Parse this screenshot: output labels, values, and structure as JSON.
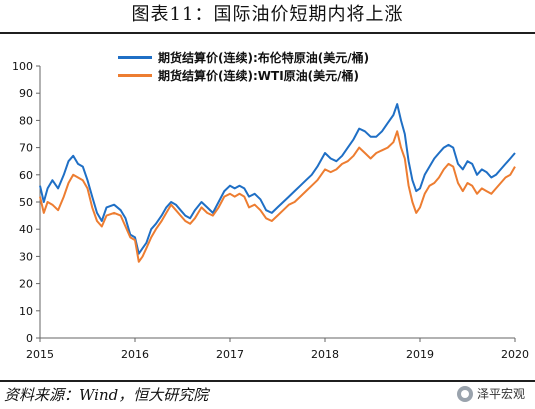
{
  "page_title": "图表11：国际油价短期内将上涨",
  "source_note": "资料来源：Wind，恒大研究院",
  "watermark": "泽平宏观",
  "chart_data": {
    "type": "line",
    "title": "",
    "xlabel": "",
    "ylabel": "",
    "ylim": [
      0,
      100
    ],
    "yticks": [
      "0",
      "10",
      "20",
      "30",
      "40",
      "50",
      "60",
      "70",
      "80",
      "90",
      "100"
    ],
    "xlim": [
      2015,
      2020
    ],
    "xticks": [
      "2015",
      "2016",
      "2017",
      "2018",
      "2019",
      "2020"
    ],
    "grid": false,
    "legend_position": "top",
    "series": [
      {
        "name": "期货结算价(连续):布伦特原油(美元/桶)",
        "color": "#1f6fc5",
        "x": [
          2015.0,
          2015.04,
          2015.08,
          2015.13,
          2015.19,
          2015.25,
          2015.3,
          2015.35,
          2015.4,
          2015.45,
          2015.5,
          2015.55,
          2015.6,
          2015.65,
          2015.7,
          2015.78,
          2015.85,
          2015.9,
          2015.95,
          2016.0,
          2016.04,
          2016.08,
          2016.12,
          2016.17,
          2016.22,
          2016.28,
          2016.33,
          2016.38,
          2016.43,
          2016.48,
          2016.53,
          2016.58,
          2016.63,
          2016.7,
          2016.76,
          2016.82,
          2016.88,
          2016.94,
          2017.0,
          2017.05,
          2017.1,
          2017.15,
          2017.2,
          2017.26,
          2017.32,
          2017.38,
          2017.44,
          2017.5,
          2017.56,
          2017.62,
          2017.68,
          2017.74,
          2017.8,
          2017.86,
          2017.92,
          2018.0,
          2018.06,
          2018.12,
          2018.18,
          2018.24,
          2018.3,
          2018.36,
          2018.42,
          2018.48,
          2018.54,
          2018.6,
          2018.66,
          2018.72,
          2018.76,
          2018.8,
          2018.84,
          2018.88,
          2018.92,
          2018.96,
          2019.0,
          2019.05,
          2019.1,
          2019.15,
          2019.2,
          2019.25,
          2019.3,
          2019.35,
          2019.4,
          2019.45,
          2019.5,
          2019.55,
          2019.6,
          2019.65,
          2019.7,
          2019.75,
          2019.8,
          2019.85,
          2019.9,
          2019.95,
          2020.0
        ],
        "values": [
          56,
          50,
          55,
          58,
          55,
          60,
          65,
          67,
          64,
          63,
          58,
          52,
          46,
          43,
          48,
          49,
          47,
          44,
          38,
          37,
          31,
          33,
          35,
          40,
          42,
          45,
          48,
          50,
          49,
          47,
          45,
          44,
          47,
          50,
          48,
          46,
          50,
          54,
          56,
          55,
          56,
          55,
          52,
          53,
          51,
          47,
          46,
          48,
          50,
          52,
          54,
          56,
          58,
          60,
          63,
          68,
          66,
          65,
          67,
          70,
          73,
          77,
          76,
          74,
          74,
          76,
          79,
          82,
          86,
          80,
          75,
          65,
          58,
          54,
          55,
          60,
          63,
          66,
          68,
          70,
          71,
          70,
          64,
          62,
          65,
          64,
          60,
          62,
          61,
          59,
          60,
          62,
          64,
          66,
          68
        ]
      },
      {
        "name": "期货结算价(连续):WTI原油(美元/桶)",
        "color": "#ed7d31",
        "x": [
          2015.0,
          2015.04,
          2015.08,
          2015.13,
          2015.19,
          2015.25,
          2015.3,
          2015.35,
          2015.4,
          2015.45,
          2015.5,
          2015.55,
          2015.6,
          2015.65,
          2015.7,
          2015.78,
          2015.85,
          2015.9,
          2015.95,
          2016.0,
          2016.04,
          2016.08,
          2016.12,
          2016.17,
          2016.22,
          2016.28,
          2016.33,
          2016.38,
          2016.43,
          2016.48,
          2016.53,
          2016.58,
          2016.63,
          2016.7,
          2016.76,
          2016.82,
          2016.88,
          2016.94,
          2017.0,
          2017.05,
          2017.1,
          2017.15,
          2017.2,
          2017.26,
          2017.32,
          2017.38,
          2017.44,
          2017.5,
          2017.56,
          2017.62,
          2017.68,
          2017.74,
          2017.8,
          2017.86,
          2017.92,
          2018.0,
          2018.06,
          2018.12,
          2018.18,
          2018.24,
          2018.3,
          2018.36,
          2018.42,
          2018.48,
          2018.54,
          2018.6,
          2018.66,
          2018.72,
          2018.76,
          2018.8,
          2018.84,
          2018.88,
          2018.92,
          2018.96,
          2019.0,
          2019.05,
          2019.1,
          2019.15,
          2019.2,
          2019.25,
          2019.3,
          2019.35,
          2019.4,
          2019.45,
          2019.5,
          2019.55,
          2019.6,
          2019.65,
          2019.7,
          2019.75,
          2019.8,
          2019.85,
          2019.9,
          2019.95,
          2020.0
        ],
        "values": [
          52,
          46,
          50,
          49,
          47,
          52,
          57,
          60,
          59,
          58,
          55,
          48,
          43,
          41,
          45,
          46,
          45,
          41,
          37,
          36,
          28,
          30,
          33,
          37,
          40,
          43,
          46,
          49,
          47,
          45,
          43,
          42,
          44,
          48,
          46,
          45,
          48,
          52,
          53,
          52,
          53,
          52,
          48,
          49,
          47,
          44,
          43,
          45,
          47,
          49,
          50,
          52,
          54,
          56,
          58,
          62,
          61,
          62,
          64,
          65,
          67,
          70,
          68,
          66,
          68,
          69,
          70,
          72,
          76,
          70,
          66,
          56,
          50,
          46,
          48,
          53,
          56,
          57,
          59,
          62,
          64,
          63,
          57,
          54,
          57,
          56,
          53,
          55,
          54,
          53,
          55,
          57,
          59,
          60,
          63
        ]
      }
    ]
  }
}
